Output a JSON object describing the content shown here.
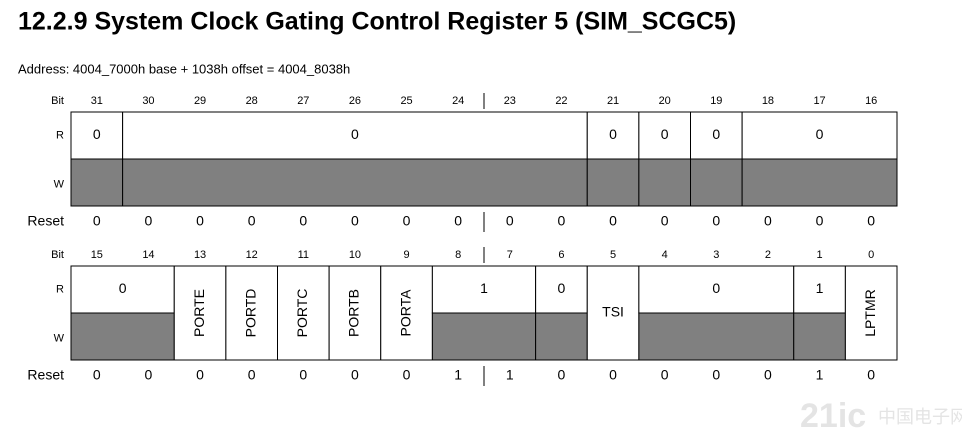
{
  "title": "12.2.9   System Clock Gating Control Register 5 (SIM_SCGC5)",
  "address": "Address: 4004_7000h base + 1038h offset = 4004_8038h",
  "row_labels": {
    "bit": "Bit",
    "r": "R",
    "w": "W",
    "reset": "Reset"
  },
  "registers": [
    {
      "bits": [
        "31",
        "30",
        "29",
        "28",
        "27",
        "26",
        "25",
        "24",
        "23",
        "22",
        "21",
        "20",
        "19",
        "18",
        "17",
        "16"
      ],
      "fields": [
        {
          "width": 1,
          "r": "0"
        },
        {
          "width": 9,
          "r": "0"
        },
        {
          "width": 1,
          "r": "0"
        },
        {
          "width": 1,
          "r": "0"
        },
        {
          "width": 1,
          "r": "0"
        },
        {
          "width": 3,
          "r": "0"
        }
      ],
      "reset": [
        "0",
        "0",
        "0",
        "0",
        "0",
        "0",
        "0",
        "0",
        "0",
        "0",
        "0",
        "0",
        "0",
        "0",
        "0",
        "0"
      ]
    },
    {
      "bits": [
        "15",
        "14",
        "13",
        "12",
        "11",
        "10",
        "9",
        "8",
        "7",
        "6",
        "5",
        "4",
        "3",
        "2",
        "1",
        "0"
      ],
      "fields": [
        {
          "width": 2,
          "r": "0"
        },
        {
          "width": 1,
          "name": "PORTE"
        },
        {
          "width": 1,
          "name": "PORTD"
        },
        {
          "width": 1,
          "name": "PORTC"
        },
        {
          "width": 1,
          "name": "PORTB"
        },
        {
          "width": 1,
          "name": "PORTA"
        },
        {
          "width": 2,
          "r": "1"
        },
        {
          "width": 1,
          "r": "0"
        },
        {
          "width": 1,
          "name": "TSI",
          "horizontal": true
        },
        {
          "width": 3,
          "r": "0"
        },
        {
          "width": 1,
          "r": "1"
        },
        {
          "width": 1,
          "name": "LPTMR"
        }
      ],
      "reset": [
        "0",
        "0",
        "0",
        "0",
        "0",
        "0",
        "0",
        "1",
        "1",
        "0",
        "0",
        "0",
        "0",
        "0",
        "1",
        "0"
      ]
    }
  ],
  "watermark": {
    "brand": "21ic",
    "site": "中国电子网"
  }
}
